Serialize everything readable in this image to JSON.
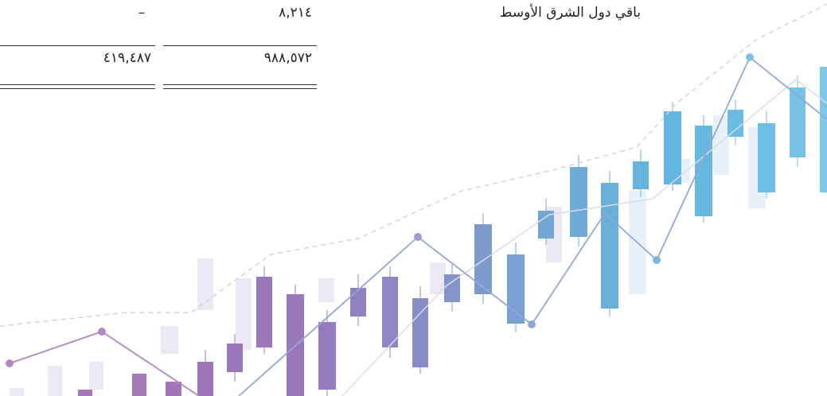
{
  "table": {
    "rows": [
      {
        "label": "باقي دول الشرق الأوسط",
        "current": "٨,٢١٤",
        "previous": "–"
      }
    ],
    "totals": {
      "current": "٩٨٨,٥٧٢",
      "previous": "٤١٩,٤٨٧"
    }
  }
}
